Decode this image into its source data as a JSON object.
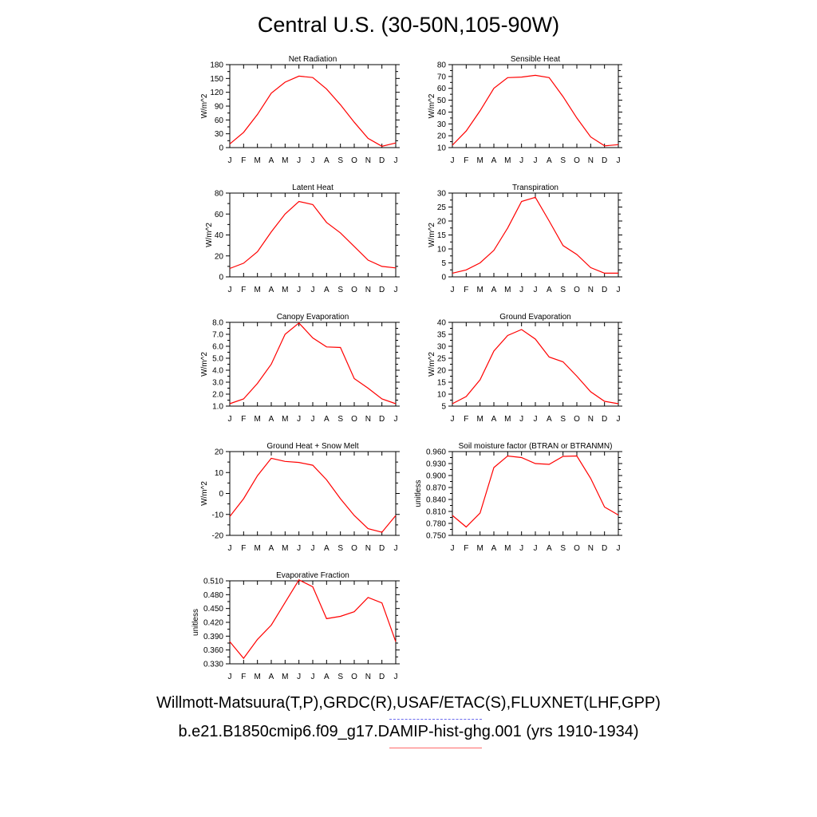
{
  "page": {
    "title": "Central U.S. (30-50N,105-90W)",
    "legend_obs": "Willmott-Matsuura(T,P),GRDC(R),USAF/ETAC(S),FLUXNET(LHF,GPP)",
    "legend_model": "b.e21.B1850cmip6.f09_g17.DAMIP-hist-ghg.001 (yrs 1910-1934)",
    "obs_color": "#6a6aee",
    "model_color": "#ff0000"
  },
  "chart_data": [
    {
      "type": "line",
      "title": "Net Radiation",
      "ylabel": "W/m^2",
      "x": [
        "J",
        "F",
        "M",
        "A",
        "M",
        "J",
        "J",
        "A",
        "S",
        "O",
        "N",
        "D",
        "J"
      ],
      "ylim": [
        0,
        180
      ],
      "yticks": [
        "0",
        "30",
        "60",
        "90",
        "120",
        "150",
        "180"
      ],
      "series": [
        {
          "values": [
            8,
            33,
            72,
            118,
            142,
            155,
            152,
            127,
            93,
            55,
            20,
            3,
            10
          ]
        }
      ]
    },
    {
      "type": "line",
      "title": "Sensible Heat",
      "ylabel": "W/m^2",
      "x": [
        "J",
        "F",
        "M",
        "A",
        "M",
        "J",
        "J",
        "A",
        "S",
        "O",
        "N",
        "D",
        "J"
      ],
      "ylim": [
        10,
        80
      ],
      "yticks": [
        "10",
        "20",
        "30",
        "40",
        "50",
        "60",
        "70",
        "80"
      ],
      "series": [
        {
          "values": [
            12,
            24,
            41,
            60,
            69,
            69.5,
            71,
            69,
            53,
            35,
            19,
            11.5,
            12.5
          ]
        }
      ]
    },
    {
      "type": "line",
      "title": "Latent Heat",
      "ylabel": "W/m^2",
      "x": [
        "J",
        "F",
        "M",
        "A",
        "M",
        "J",
        "J",
        "A",
        "S",
        "O",
        "N",
        "D",
        "J"
      ],
      "ylim": [
        0,
        80
      ],
      "yticks": [
        "0",
        "20",
        "40",
        "60",
        "80"
      ],
      "series": [
        {
          "values": [
            8,
            13,
            24,
            43,
            60,
            72,
            69,
            52,
            42,
            29,
            16,
            10,
            8.5
          ]
        }
      ]
    },
    {
      "type": "line",
      "title": "Transpiration",
      "ylabel": "W/m^2",
      "x": [
        "J",
        "F",
        "M",
        "A",
        "M",
        "J",
        "J",
        "A",
        "S",
        "O",
        "N",
        "D",
        "J"
      ],
      "ylim": [
        0,
        30
      ],
      "yticks": [
        "0",
        "5",
        "10",
        "15",
        "20",
        "25",
        "30"
      ],
      "series": [
        {
          "values": [
            1.3,
            2.5,
            5,
            9.5,
            17.5,
            27,
            28.5,
            20,
            11.2,
            8,
            3.3,
            1.3,
            1.3
          ]
        }
      ]
    },
    {
      "type": "line",
      "title": "Canopy Evaporation",
      "ylabel": "W/m^2",
      "x": [
        "J",
        "F",
        "M",
        "A",
        "M",
        "J",
        "J",
        "A",
        "S",
        "O",
        "N",
        "D",
        "J"
      ],
      "ylim": [
        1,
        8
      ],
      "yticks": [
        "1.0",
        "2.0",
        "3.0",
        "4.0",
        "5.0",
        "6.0",
        "7.0",
        "8.0"
      ],
      "series": [
        {
          "values": [
            1.2,
            1.6,
            2.9,
            4.5,
            7.0,
            7.95,
            6.7,
            5.95,
            5.9,
            3.3,
            2.5,
            1.6,
            1.2
          ]
        }
      ]
    },
    {
      "type": "line",
      "title": "Ground Evaporation",
      "ylabel": "W/m^2",
      "x": [
        "J",
        "F",
        "M",
        "A",
        "M",
        "J",
        "J",
        "A",
        "S",
        "O",
        "N",
        "D",
        "J"
      ],
      "ylim": [
        5,
        40
      ],
      "yticks": [
        "5",
        "10",
        "15",
        "20",
        "25",
        "30",
        "35",
        "40"
      ],
      "series": [
        {
          "values": [
            6,
            9,
            16,
            28,
            34.5,
            37,
            33,
            25.5,
            23.5,
            17.5,
            11,
            7,
            6
          ]
        }
      ]
    },
    {
      "type": "line",
      "title": "Ground Heat + Snow Melt",
      "ylabel": "W/m^2",
      "x": [
        "J",
        "F",
        "M",
        "A",
        "M",
        "J",
        "J",
        "A",
        "S",
        "O",
        "N",
        "D",
        "J"
      ],
      "ylim": [
        -20,
        20
      ],
      "yticks": [
        "-20",
        "-10",
        "0",
        "10",
        "20"
      ],
      "series": [
        {
          "values": [
            -11,
            -2.5,
            8.5,
            16.8,
            15.3,
            14.8,
            13.5,
            6.5,
            -2.5,
            -10.5,
            -16.8,
            -18.5,
            -10.5
          ]
        }
      ]
    },
    {
      "type": "line",
      "title": "Soil moisture factor (BTRAN or BTRANMN)",
      "ylabel": "unitless",
      "x": [
        "J",
        "F",
        "M",
        "A",
        "M",
        "J",
        "J",
        "A",
        "S",
        "O",
        "N",
        "D",
        "J"
      ],
      "ylim": [
        0.75,
        0.96
      ],
      "yticks": [
        "0.750",
        "0.780",
        "0.810",
        "0.840",
        "0.870",
        "0.900",
        "0.930",
        "0.960"
      ],
      "series": [
        {
          "values": [
            0.8,
            0.771,
            0.806,
            0.92,
            0.949,
            0.945,
            0.93,
            0.928,
            0.948,
            0.949,
            0.893,
            0.821,
            0.801
          ]
        }
      ]
    },
    {
      "type": "line",
      "title": "Evaporative Fraction",
      "ylabel": "unitless",
      "x": [
        "J",
        "F",
        "M",
        "A",
        "M",
        "J",
        "J",
        "A",
        "S",
        "O",
        "N",
        "D",
        "J"
      ],
      "ylim": [
        0.33,
        0.51
      ],
      "yticks": [
        "0.330",
        "0.360",
        "0.390",
        "0.420",
        "0.450",
        "0.480",
        "0.510"
      ],
      "series": [
        {
          "values": [
            0.378,
            0.342,
            0.383,
            0.414,
            0.463,
            0.512,
            0.497,
            0.428,
            0.433,
            0.443,
            0.474,
            0.462,
            0.378
          ]
        }
      ]
    }
  ]
}
